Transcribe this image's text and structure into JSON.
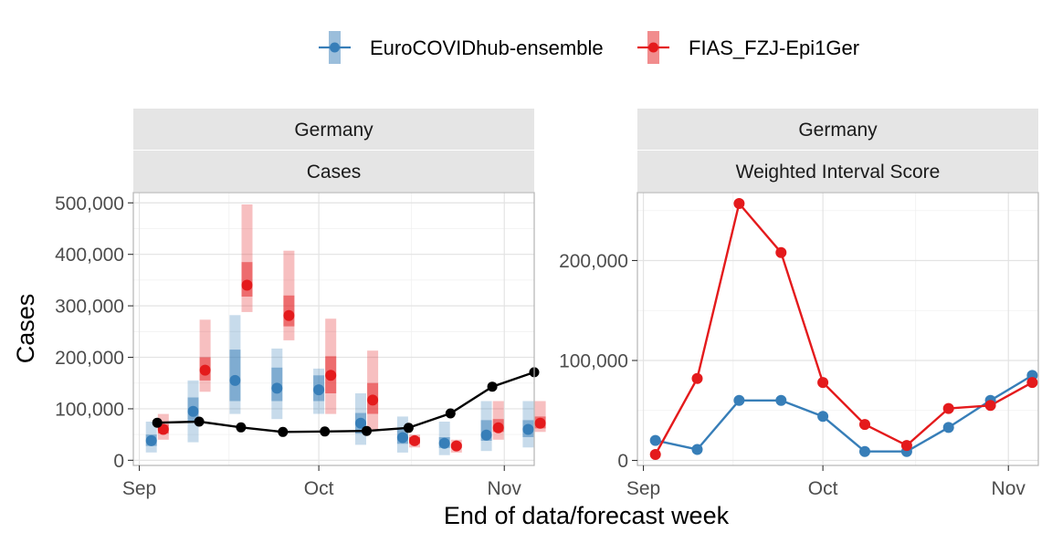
{
  "legend": {
    "items": [
      {
        "label": "EuroCOVIDhub-ensemble",
        "color": "#377eb8"
      },
      {
        "label": "FIAS_FZJ-Epi1Ger",
        "color": "#e41a1c"
      }
    ]
  },
  "x_axis_title": "End of data/forecast week",
  "chart_data": [
    {
      "type": "line",
      "strip_top": "Germany",
      "strip_bottom": "Cases",
      "ylabel": "Cases",
      "xlabel": "End of data/forecast week",
      "ylim": [
        -10000,
        520000
      ],
      "xlim": [
        "2021-08-31",
        "2021-11-06"
      ],
      "y_ticks": [
        0,
        100000,
        200000,
        300000,
        400000,
        500000
      ],
      "y_tick_labels": [
        "0",
        "100,000",
        "200,000",
        "300,000",
        "400,000",
        "500,000"
      ],
      "x_ticks": [
        "2021-09-01",
        "2021-10-01",
        "2021-11-01"
      ],
      "x_tick_labels": [
        "Sep",
        "Oct",
        "Nov"
      ],
      "truth": {
        "dates": [
          "2021-09-04",
          "2021-09-11",
          "2021-09-18",
          "2021-09-25",
          "2021-10-02",
          "2021-10-09",
          "2021-10-16",
          "2021-10-23",
          "2021-10-30",
          "2021-11-06"
        ],
        "values": [
          73000,
          75000,
          64000,
          55000,
          56000,
          57000,
          63000,
          91000,
          143000,
          171000
        ],
        "color": "#000000"
      },
      "forecasts": [
        {
          "model": "EuroCOVIDhub-ensemble",
          "color": "#377eb8",
          "dates": [
            "2021-09-03",
            "2021-09-10",
            "2021-09-17",
            "2021-09-24",
            "2021-10-01",
            "2021-10-08",
            "2021-10-15",
            "2021-10-22",
            "2021-10-29",
            "2021-11-05"
          ],
          "median": [
            38000,
            95000,
            155000,
            140000,
            137000,
            72000,
            44000,
            33000,
            49000,
            60000
          ],
          "q25": [
            28000,
            75000,
            115000,
            115000,
            115000,
            52000,
            32000,
            24000,
            38000,
            45000
          ],
          "q75": [
            50000,
            122000,
            215000,
            180000,
            165000,
            92000,
            62000,
            45000,
            78000,
            78000
          ],
          "q05": [
            15000,
            35000,
            90000,
            80000,
            90000,
            30000,
            15000,
            10000,
            18000,
            25000
          ],
          "q95": [
            75000,
            155000,
            282000,
            217000,
            178000,
            130000,
            85000,
            75000,
            115000,
            115000
          ]
        },
        {
          "model": "FIAS_FZJ-Epi1Ger",
          "color": "#e41a1c",
          "dates": [
            "2021-09-05",
            "2021-09-12",
            "2021-09-19",
            "2021-09-26",
            "2021-10-03",
            "2021-10-10",
            "2021-10-17",
            "2021-10-24",
            "2021-10-31",
            "2021-11-07"
          ],
          "median": [
            60000,
            175000,
            340000,
            281000,
            165000,
            117000,
            38000,
            28000,
            63000,
            72000
          ],
          "q25": [
            52000,
            155000,
            318000,
            260000,
            130000,
            90000,
            32000,
            24000,
            55000,
            62000
          ],
          "q75": [
            70000,
            200000,
            385000,
            320000,
            202000,
            150000,
            45000,
            32000,
            80000,
            85000
          ],
          "q05": [
            40000,
            133000,
            288000,
            233000,
            90000,
            60000,
            25000,
            15000,
            40000,
            55000
          ],
          "q95": [
            90000,
            273000,
            497000,
            407000,
            275000,
            213000,
            50000,
            40000,
            115000,
            115000
          ]
        }
      ]
    },
    {
      "type": "line",
      "strip_top": "Germany",
      "strip_bottom": "Weighted Interval Score",
      "ylim": [
        -5000,
        268000
      ],
      "xlim": [
        "2021-08-31",
        "2021-11-06"
      ],
      "y_ticks": [
        0,
        100000,
        200000
      ],
      "y_tick_labels": [
        "0",
        "100,000",
        "200,000"
      ],
      "x_ticks": [
        "2021-09-01",
        "2021-10-01",
        "2021-11-01"
      ],
      "x_tick_labels": [
        "Sep",
        "Oct",
        "Nov"
      ],
      "series": [
        {
          "name": "EuroCOVIDhub-ensemble",
          "color": "#377eb8",
          "dates": [
            "2021-09-03",
            "2021-09-10",
            "2021-09-17",
            "2021-09-24",
            "2021-10-01",
            "2021-10-08",
            "2021-10-15",
            "2021-10-22",
            "2021-10-29",
            "2021-11-05"
          ],
          "values": [
            20000,
            11000,
            60000,
            60000,
            44000,
            9000,
            9000,
            33000,
            60000,
            85000
          ]
        },
        {
          "name": "FIAS_FZJ-Epi1Ger",
          "color": "#e41a1c",
          "dates": [
            "2021-09-03",
            "2021-09-10",
            "2021-09-17",
            "2021-09-24",
            "2021-10-01",
            "2021-10-08",
            "2021-10-15",
            "2021-10-22",
            "2021-10-29",
            "2021-11-05"
          ],
          "values": [
            6000,
            82000,
            257000,
            208000,
            78000,
            36000,
            15000,
            52000,
            55000,
            78000
          ]
        }
      ]
    }
  ]
}
